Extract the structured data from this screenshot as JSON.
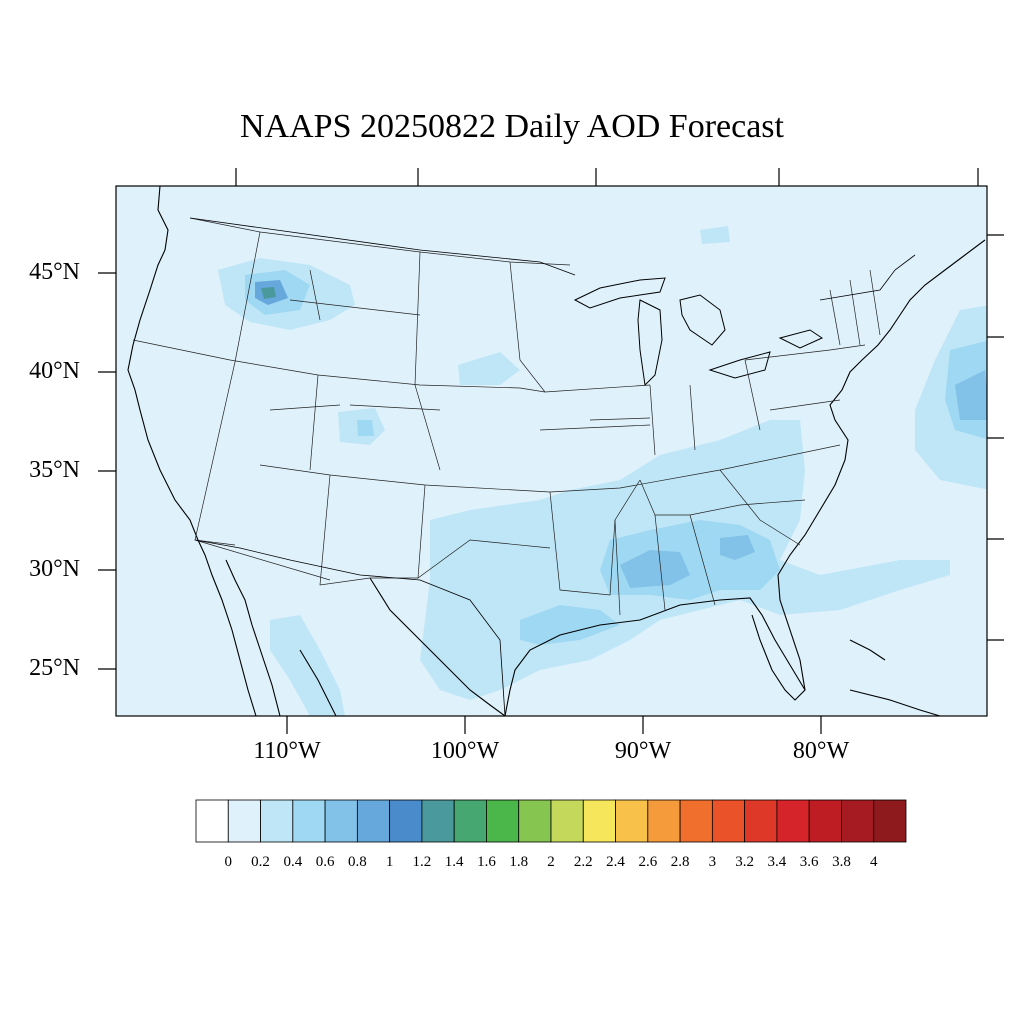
{
  "title": "NAAPS 20250822 Daily AOD Forecast",
  "map": {
    "lat_labels": [
      "45°N",
      "40°N",
      "35°N",
      "30°N",
      "25°N"
    ],
    "lon_labels": [
      "110°W",
      "100°W",
      "90°W",
      "80°W"
    ],
    "ocean_color": "#dff1fb",
    "boundary_color": "#000000"
  },
  "colorbar": {
    "labels": [
      "0",
      "0.2",
      "0.4",
      "0.6",
      "0.8",
      "1",
      "1.2",
      "1.4",
      "1.6",
      "1.8",
      "2",
      "2.2",
      "2.4",
      "2.6",
      "2.8",
      "3",
      "3.2",
      "3.4",
      "3.6",
      "3.8",
      "4"
    ],
    "colors": [
      "#ffffff",
      "#dff1fb",
      "#bfe6f7",
      "#9fd8f2",
      "#82c1e8",
      "#66a8dc",
      "#4a8ccb",
      "#4a9a9d",
      "#46a870",
      "#4bb649",
      "#86c54f",
      "#c4d95c",
      "#f5e65b",
      "#f8c14a",
      "#f59b3c",
      "#f16f2c",
      "#ea5229",
      "#de3828",
      "#d5242a",
      "#be1d24",
      "#a61b22",
      "#8f1a1d"
    ]
  }
}
